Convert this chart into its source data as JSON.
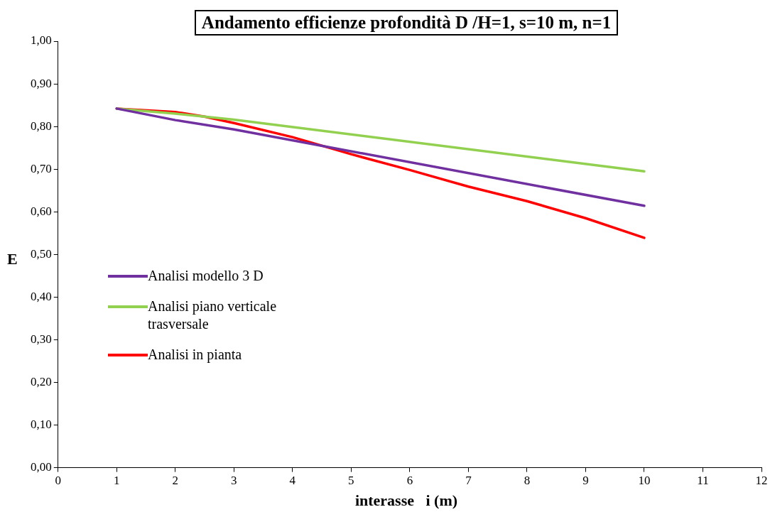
{
  "chart_data": {
    "type": "line",
    "title": "Andamento efficienze profondità D /H=1, s=10 m, n=1",
    "xlabel": "interasse   i (m)",
    "ylabel": "E",
    "xlim": [
      0,
      12
    ],
    "xticks": [
      0,
      1,
      2,
      3,
      4,
      5,
      6,
      7,
      8,
      9,
      10,
      11,
      12
    ],
    "ylim": [
      0,
      1
    ],
    "yticks": [
      {
        "value": 0,
        "label": "0,00"
      },
      {
        "value": 0.1,
        "label": "0,10"
      },
      {
        "value": 0.2,
        "label": "0,20"
      },
      {
        "value": 0.3,
        "label": "0,30"
      },
      {
        "value": 0.4,
        "label": "0,40"
      },
      {
        "value": 0.5,
        "label": "0,50"
      },
      {
        "value": 0.6,
        "label": "0,60"
      },
      {
        "value": 0.7,
        "label": "0,70"
      },
      {
        "value": 0.8,
        "label": "0,80"
      },
      {
        "value": 0.9,
        "label": "0,90"
      },
      {
        "value": 1,
        "label": "1,00"
      }
    ],
    "grid": false,
    "legend": "left",
    "marker": "none",
    "series": [
      {
        "name": "Analisi modello 3 D",
        "color": "#7030a0",
        "x": [
          1,
          2,
          3,
          10
        ],
        "values": [
          0.842,
          0.815,
          0.793,
          0.614
        ]
      },
      {
        "name": "Analisi piano verticale trasversale",
        "color": "#92d050",
        "x": [
          1,
          2,
          3,
          10
        ],
        "values": [
          0.842,
          0.83,
          0.816,
          0.695
        ]
      },
      {
        "name": "Analisi in pianta",
        "color": "#ff0000",
        "x": [
          1,
          2,
          2.5,
          3,
          4,
          5,
          6,
          7,
          8,
          9,
          10
        ],
        "values": [
          0.842,
          0.834,
          0.823,
          0.808,
          0.775,
          0.735,
          0.698,
          0.659,
          0.625,
          0.585,
          0.539
        ]
      }
    ]
  }
}
